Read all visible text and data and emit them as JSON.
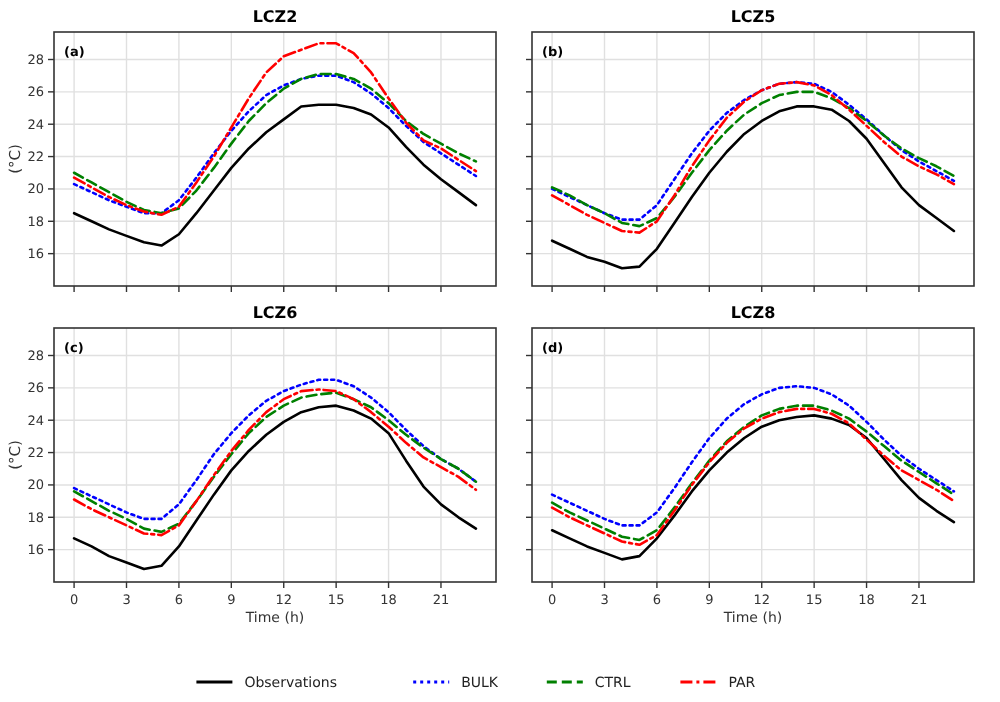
{
  "chart_data": [
    {
      "type": "line",
      "title": "LCZ2",
      "ylabel": "(°C)",
      "annotations": [
        "(a)"
      ],
      "x": [
        0,
        1,
        2,
        3,
        4,
        5,
        6,
        7,
        8,
        9,
        10,
        11,
        12,
        13,
        14,
        15,
        16,
        17,
        18,
        19,
        20,
        21,
        22,
        23
      ],
      "xlim": [
        -1.15,
        24.15
      ],
      "xticks": [
        0,
        3,
        6,
        9,
        12,
        15,
        18,
        21
      ],
      "ylim": [
        14,
        29.7
      ],
      "yticks": [
        16,
        18,
        20,
        22,
        24,
        26,
        28
      ],
      "grid": true,
      "tick_labels": "y",
      "legend": "bottom",
      "series": [
        {
          "name": "Observations",
          "color": "#000000",
          "line_style": "solid",
          "values": [
            18.5,
            18.0,
            17.5,
            17.1,
            16.7,
            16.5,
            17.2,
            18.5,
            19.9,
            21.3,
            22.5,
            23.5,
            24.3,
            25.1,
            25.2,
            25.2,
            25.0,
            24.6,
            23.8,
            22.6,
            21.5,
            20.6,
            19.8,
            19.0
          ]
        },
        {
          "name": "BULK",
          "color": "#0000ff",
          "line_style": "dotted",
          "values": [
            20.3,
            19.8,
            19.3,
            18.9,
            18.5,
            18.5,
            19.3,
            20.7,
            22.2,
            23.6,
            24.8,
            25.8,
            26.4,
            26.8,
            27.0,
            27.0,
            26.6,
            25.9,
            25.0,
            23.9,
            22.9,
            22.2,
            21.5,
            20.8
          ]
        },
        {
          "name": "CTRL",
          "color": "#008000",
          "line_style": "dashed",
          "values": [
            21.0,
            20.4,
            19.8,
            19.2,
            18.7,
            18.5,
            18.8,
            19.9,
            21.3,
            22.8,
            24.2,
            25.3,
            26.2,
            26.8,
            27.1,
            27.1,
            26.8,
            26.2,
            25.3,
            24.2,
            23.4,
            22.8,
            22.2,
            21.7
          ]
        },
        {
          "name": "PAR",
          "color": "#ff0000",
          "line_style": "dashdot",
          "values": [
            20.7,
            20.1,
            19.5,
            19.0,
            18.6,
            18.4,
            18.9,
            20.4,
            22.0,
            23.8,
            25.6,
            27.2,
            28.2,
            28.6,
            29.0,
            29.0,
            28.4,
            27.2,
            25.6,
            24.1,
            23.0,
            22.5,
            21.8,
            21.1
          ]
        }
      ]
    },
    {
      "type": "line",
      "title": "LCZ5",
      "annotations": [
        "(b)"
      ],
      "x": [
        0,
        1,
        2,
        3,
        4,
        5,
        6,
        7,
        8,
        9,
        10,
        11,
        12,
        13,
        14,
        15,
        16,
        17,
        18,
        19,
        20,
        21,
        22,
        23
      ],
      "xlim": [
        -1.15,
        24.15
      ],
      "xticks": [
        0,
        3,
        6,
        9,
        12,
        15,
        18,
        21
      ],
      "ylim": [
        14,
        29.7
      ],
      "yticks": [
        16,
        18,
        20,
        22,
        24,
        26,
        28
      ],
      "grid": true,
      "tick_labels": false,
      "series": [
        {
          "color": "#000000",
          "line_style": "solid",
          "values": [
            16.8,
            16.3,
            15.8,
            15.5,
            15.1,
            15.2,
            16.3,
            17.9,
            19.5,
            21.0,
            22.3,
            23.4,
            24.2,
            24.8,
            25.1,
            25.1,
            24.9,
            24.2,
            23.1,
            21.6,
            20.1,
            19.0,
            18.2,
            17.4
          ]
        },
        {
          "color": "#0000ff",
          "line_style": "dotted",
          "values": [
            20.0,
            19.5,
            19.0,
            18.5,
            18.1,
            18.1,
            19.0,
            20.6,
            22.2,
            23.6,
            24.7,
            25.5,
            26.1,
            26.5,
            26.6,
            26.5,
            26.0,
            25.2,
            24.3,
            23.3,
            22.4,
            21.7,
            21.1,
            20.5
          ]
        },
        {
          "color": "#008000",
          "line_style": "dashed",
          "values": [
            20.1,
            19.6,
            19.0,
            18.5,
            17.9,
            17.7,
            18.2,
            19.5,
            21.0,
            22.4,
            23.6,
            24.6,
            25.3,
            25.8,
            26.0,
            26.0,
            25.6,
            25.0,
            24.2,
            23.3,
            22.5,
            21.9,
            21.4,
            20.8
          ]
        },
        {
          "color": "#ff0000",
          "line_style": "dashdot",
          "values": [
            19.6,
            19.0,
            18.4,
            17.9,
            17.4,
            17.3,
            18.0,
            19.6,
            21.4,
            23.0,
            24.4,
            25.4,
            26.1,
            26.5,
            26.6,
            26.4,
            25.8,
            24.9,
            23.9,
            22.9,
            22.0,
            21.4,
            20.9,
            20.3
          ]
        }
      ]
    },
    {
      "type": "line",
      "title": "LCZ6",
      "xlabel": "Time (h)",
      "ylabel": "(°C)",
      "annotations": [
        "(c)"
      ],
      "x": [
        0,
        1,
        2,
        3,
        4,
        5,
        6,
        7,
        8,
        9,
        10,
        11,
        12,
        13,
        14,
        15,
        16,
        17,
        18,
        19,
        20,
        21,
        22,
        23
      ],
      "xlim": [
        -1.15,
        24.15
      ],
      "xticks": [
        0,
        3,
        6,
        9,
        12,
        15,
        18,
        21
      ],
      "ylim": [
        14,
        29.7
      ],
      "yticks": [
        16,
        18,
        20,
        22,
        24,
        26,
        28
      ],
      "grid": true,
      "series": [
        {
          "color": "#000000",
          "line_style": "solid",
          "values": [
            16.7,
            16.2,
            15.6,
            15.2,
            14.8,
            15.0,
            16.2,
            17.8,
            19.4,
            20.9,
            22.1,
            23.1,
            23.9,
            24.5,
            24.8,
            24.9,
            24.6,
            24.1,
            23.2,
            21.5,
            19.9,
            18.8,
            18.0,
            17.3
          ]
        },
        {
          "color": "#0000ff",
          "line_style": "dotted",
          "values": [
            19.8,
            19.3,
            18.8,
            18.3,
            17.9,
            17.9,
            18.8,
            20.3,
            21.9,
            23.2,
            24.3,
            25.2,
            25.8,
            26.2,
            26.5,
            26.5,
            26.1,
            25.4,
            24.5,
            23.4,
            22.4,
            21.6,
            21.0,
            20.2
          ]
        },
        {
          "color": "#008000",
          "line_style": "dashed",
          "values": [
            19.6,
            19.0,
            18.4,
            17.9,
            17.3,
            17.1,
            17.6,
            19.0,
            20.5,
            21.9,
            23.2,
            24.2,
            24.9,
            25.4,
            25.6,
            25.7,
            25.3,
            24.8,
            24.0,
            23.1,
            22.3,
            21.6,
            21.0,
            20.2
          ]
        },
        {
          "color": "#ff0000",
          "line_style": "dashdot",
          "values": [
            19.1,
            18.5,
            18.0,
            17.5,
            17.0,
            16.9,
            17.5,
            19.0,
            20.6,
            22.1,
            23.4,
            24.5,
            25.3,
            25.8,
            25.9,
            25.8,
            25.3,
            24.5,
            23.6,
            22.6,
            21.7,
            21.1,
            20.5,
            19.7
          ]
        }
      ]
    },
    {
      "type": "line",
      "title": "LCZ8",
      "xlabel": "Time (h)",
      "annotations": [
        "(d)"
      ],
      "x": [
        0,
        1,
        2,
        3,
        4,
        5,
        6,
        7,
        8,
        9,
        10,
        11,
        12,
        13,
        14,
        15,
        16,
        17,
        18,
        19,
        20,
        21,
        22,
        23
      ],
      "xlim": [
        -1.15,
        24.15
      ],
      "xticks": [
        0,
        3,
        6,
        9,
        12,
        15,
        18,
        21
      ],
      "ylim": [
        14,
        29.7
      ],
      "yticks": [
        16,
        18,
        20,
        22,
        24,
        26,
        28
      ],
      "grid": true,
      "tick_labels": "x",
      "series": [
        {
          "color": "#000000",
          "line_style": "solid",
          "values": [
            17.2,
            16.7,
            16.2,
            15.8,
            15.4,
            15.6,
            16.7,
            18.1,
            19.6,
            20.9,
            22.0,
            22.9,
            23.6,
            24.0,
            24.2,
            24.3,
            24.1,
            23.7,
            22.9,
            21.6,
            20.3,
            19.2,
            18.4,
            17.7
          ]
        },
        {
          "color": "#0000ff",
          "line_style": "dotted",
          "values": [
            19.4,
            18.9,
            18.4,
            17.9,
            17.5,
            17.5,
            18.3,
            19.8,
            21.4,
            22.9,
            24.1,
            25.0,
            25.6,
            26.0,
            26.1,
            26.0,
            25.6,
            24.9,
            23.9,
            22.8,
            21.8,
            21.0,
            20.3,
            19.6
          ]
        },
        {
          "color": "#008000",
          "line_style": "dashed",
          "values": [
            18.9,
            18.3,
            17.8,
            17.3,
            16.8,
            16.6,
            17.2,
            18.6,
            20.1,
            21.5,
            22.7,
            23.6,
            24.3,
            24.7,
            24.9,
            24.9,
            24.6,
            24.1,
            23.3,
            22.4,
            21.5,
            20.8,
            20.1,
            19.4
          ]
        },
        {
          "color": "#ff0000",
          "line_style": "dashdot",
          "values": [
            18.6,
            18.0,
            17.5,
            17.0,
            16.5,
            16.3,
            16.9,
            18.4,
            20.0,
            21.4,
            22.6,
            23.5,
            24.1,
            24.5,
            24.7,
            24.7,
            24.4,
            23.8,
            22.8,
            21.8,
            20.9,
            20.3,
            19.7,
            19.0
          ]
        }
      ]
    }
  ]
}
